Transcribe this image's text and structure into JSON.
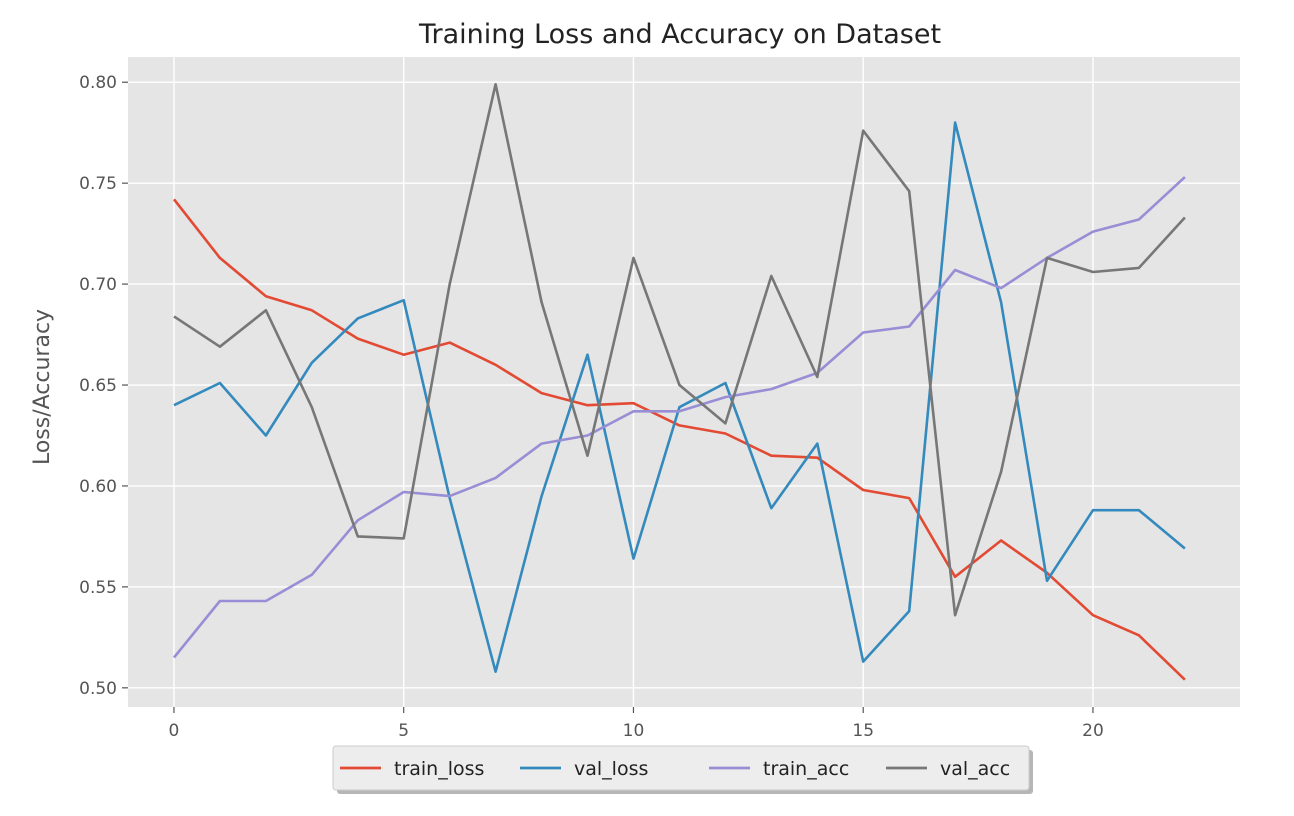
{
  "chart_data": {
    "type": "line",
    "title": "Training Loss and Accuracy on Dataset",
    "xlabel": "",
    "ylabel": "Loss/Accuracy",
    "xlim": [
      -1,
      23.2
    ],
    "ylim": [
      0.4905,
      0.8125
    ],
    "xticks": [
      0,
      5,
      10,
      15,
      20
    ],
    "xtick_labels": [
      "0",
      "5",
      "10",
      "15",
      "20"
    ],
    "yticks": [
      0.5,
      0.55,
      0.6,
      0.65,
      0.7,
      0.75,
      0.8
    ],
    "ytick_labels": [
      "0.50",
      "0.55",
      "0.60",
      "0.65",
      "0.70",
      "0.75",
      "0.80"
    ],
    "grid": true,
    "background_color": "#e5e5e5",
    "grid_color": "#ffffff",
    "legend_placement": "lower-center-outside",
    "x": [
      0,
      1,
      2,
      3,
      4,
      5,
      6,
      7,
      8,
      9,
      10,
      11,
      12,
      13,
      14,
      15,
      16,
      17,
      18,
      19,
      20,
      21,
      22
    ],
    "series": [
      {
        "name": "train_loss",
        "color": "#e24a33",
        "values": [
          0.742,
          0.713,
          0.694,
          0.687,
          0.673,
          0.665,
          0.671,
          0.66,
          0.646,
          0.64,
          0.641,
          0.63,
          0.626,
          0.615,
          0.614,
          0.598,
          0.594,
          0.555,
          0.573,
          0.557,
          0.536,
          0.526,
          0.504
        ]
      },
      {
        "name": "val_loss",
        "color": "#348abd",
        "values": [
          0.64,
          0.651,
          0.625,
          0.661,
          0.683,
          0.692,
          0.594,
          0.508,
          0.595,
          0.665,
          0.564,
          0.639,
          0.651,
          0.589,
          0.621,
          0.513,
          0.538,
          0.78,
          0.691,
          0.553,
          0.588,
          0.588,
          0.569
        ]
      },
      {
        "name": "train_acc",
        "color": "#988ed5",
        "values": [
          0.515,
          0.543,
          0.543,
          0.556,
          0.583,
          0.597,
          0.595,
          0.604,
          0.621,
          0.625,
          0.637,
          0.637,
          0.644,
          0.648,
          0.656,
          0.676,
          0.679,
          0.707,
          0.698,
          0.713,
          0.726,
          0.732,
          0.753
        ]
      },
      {
        "name": "val_acc",
        "color": "#777777",
        "values": [
          0.684,
          0.669,
          0.687,
          0.639,
          0.575,
          0.574,
          0.7,
          0.799,
          0.691,
          0.615,
          0.713,
          0.65,
          0.631,
          0.704,
          0.654,
          0.776,
          0.746,
          0.536,
          0.607,
          0.713,
          0.706,
          0.708,
          0.733
        ]
      }
    ]
  }
}
